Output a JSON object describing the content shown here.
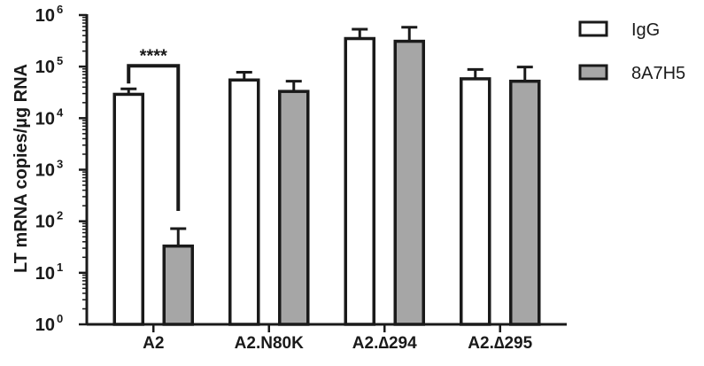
{
  "chart_data": {
    "type": "bar",
    "yscale": "log",
    "ylim": [
      1,
      1000000
    ],
    "ylabel": "LT mRNA copies/µg RNA",
    "xlabel": "",
    "categories": [
      "A2",
      "A2.N80K",
      "A2.∆294",
      "A2.∆295"
    ],
    "series": [
      {
        "name": "IgG",
        "color": "#ffffff",
        "values": [
          29000,
          55000,
          350000,
          58000
        ],
        "error_upper": [
          37000,
          78000,
          530000,
          88000
        ]
      },
      {
        "name": "8A7H5",
        "color": "#a6a6a6",
        "values": [
          33,
          33000,
          310000,
          52000
        ],
        "error_upper": [
          72,
          52000,
          580000,
          98000
        ]
      }
    ],
    "yticks": [
      {
        "base": "10",
        "exp": "0",
        "value": 1
      },
      {
        "base": "10",
        "exp": "1",
        "value": 10
      },
      {
        "base": "10",
        "exp": "2",
        "value": 100
      },
      {
        "base": "10",
        "exp": "3",
        "value": 1000
      },
      {
        "base": "10",
        "exp": "4",
        "value": 10000
      },
      {
        "base": "10",
        "exp": "5",
        "value": 100000
      },
      {
        "base": "10",
        "exp": "6",
        "value": 1000000
      }
    ],
    "annotations": [
      {
        "text": "****",
        "category": "A2",
        "type": "significance-bracket"
      }
    ],
    "legend": {
      "position": "top-right"
    },
    "grid": false
  }
}
